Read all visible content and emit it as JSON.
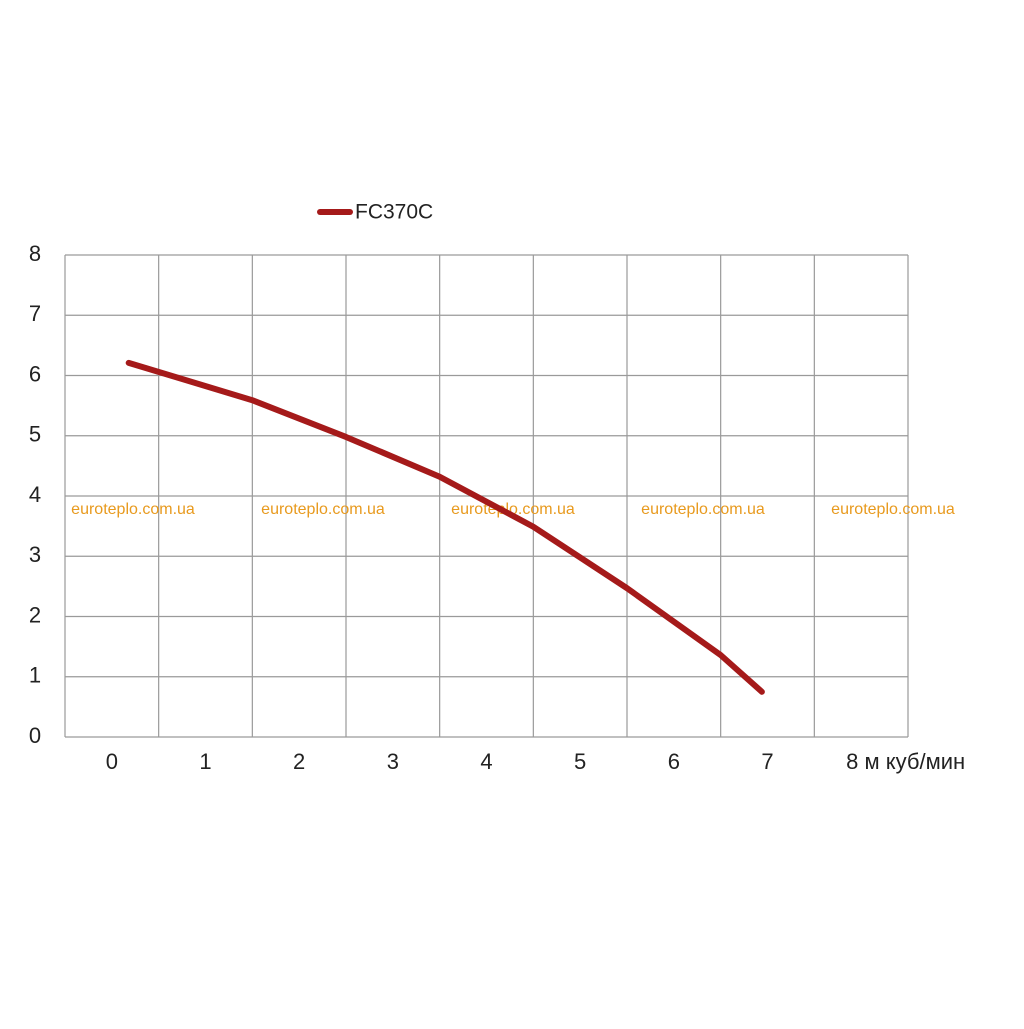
{
  "chart_data": {
    "type": "line",
    "series": [
      {
        "name": "FC370C",
        "color": "#a51a1a",
        "x": [
          0.18,
          1.5,
          2.5,
          3.5,
          4.5,
          5.5,
          6.5,
          6.94
        ],
        "values": [
          6.21,
          5.59,
          4.98,
          4.32,
          3.49,
          2.47,
          1.36,
          0.75
        ]
      }
    ],
    "xlim": [
      -0.5,
      8.5
    ],
    "xticks": [
      0,
      1,
      2,
      3,
      4,
      5,
      6,
      7,
      {
        "value": 8,
        "label": "8 м куб/мин"
      }
    ],
    "ylim": [
      0,
      8
    ],
    "yticks": [
      0,
      1,
      2,
      3,
      4,
      5,
      6,
      7,
      8
    ],
    "grid": true,
    "watermarks": [
      "euroteplo.com.ua",
      "euroteplo.com.ua",
      "euroteplo.com.ua",
      "euroteplo.com.ua",
      "euroteplo.com.ua"
    ]
  }
}
